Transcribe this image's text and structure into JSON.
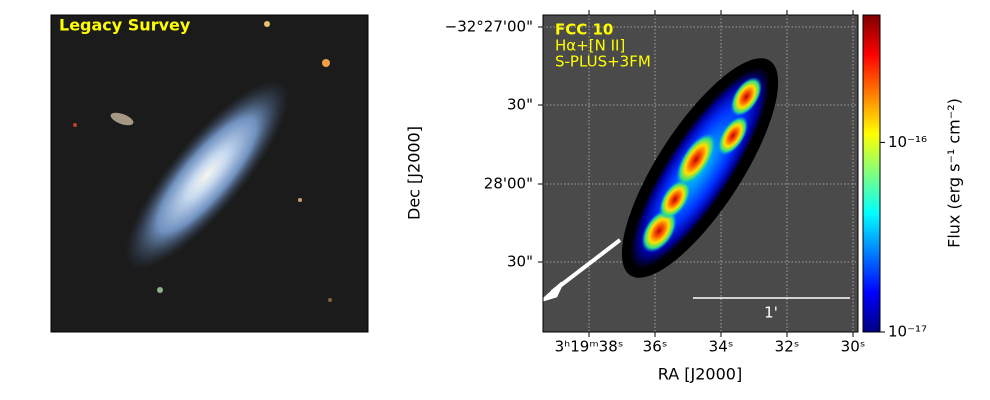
{
  "left_panel": {
    "label": "Legacy Survey"
  },
  "right_panel": {
    "title": "FCC 10",
    "line": "Hα+[N II]",
    "source": "S-PLUS+3FM",
    "scale_bar": "1'",
    "x_label": "RA [J2000]",
    "y_label": "Dec [J2000]",
    "x_ticks": [
      "3ʰ19ᵐ38ˢ",
      "36ˢ",
      "34ˢ",
      "32ˢ",
      "30ˢ"
    ],
    "y_ticks": [
      "−32°27'00\"",
      "30\"",
      "28'00\"",
      "30\""
    ]
  },
  "colorbar": {
    "label": "Flux (erg s⁻¹ cm⁻²)",
    "scale": "log",
    "colormap": "jet",
    "lim": [
      1e-17,
      4.7e-16
    ],
    "ticks": [
      {
        "value": 1e-17,
        "label": "10⁻¹⁷"
      },
      {
        "value": 1e-16,
        "label": "10⁻¹⁶"
      }
    ]
  }
}
